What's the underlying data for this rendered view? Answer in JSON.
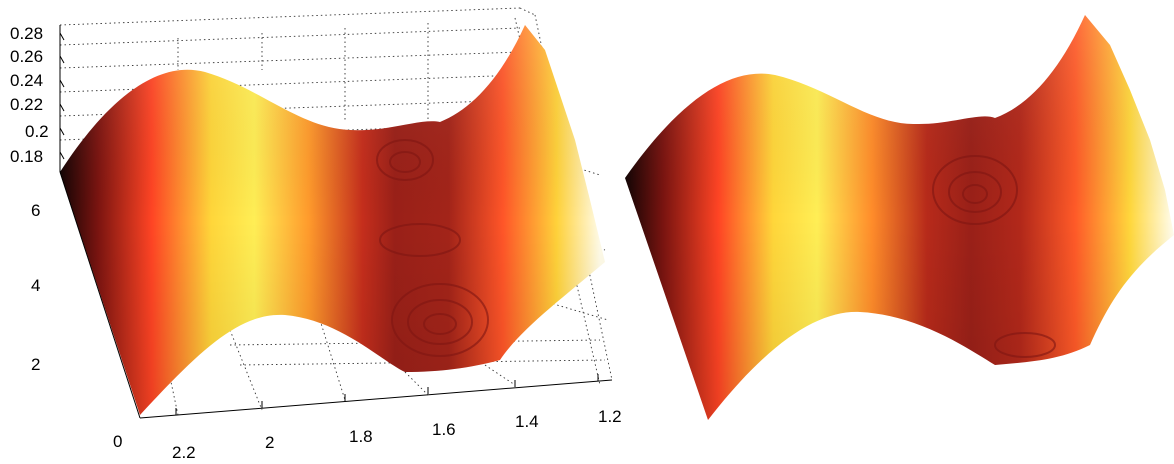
{
  "chart_data": [
    {
      "type": "surface",
      "title": "",
      "xlabel": "",
      "ylabel": "",
      "zlabel": "",
      "x_ticks": [
        "2.2",
        "2",
        "1.8",
        "1.6",
        "1.4",
        "1.2"
      ],
      "y_ticks": [
        "0",
        "2",
        "4",
        "6"
      ],
      "z_ticks": [
        "0.18",
        "0.2",
        "0.22",
        "0.24",
        "0.26",
        "0.28"
      ],
      "x_range": [
        1.15,
        2.3
      ],
      "y_range": [
        0,
        7
      ],
      "z_range": [
        0.18,
        0.28
      ],
      "colormap": "hot",
      "grid": true
    },
    {
      "type": "surface",
      "title": "",
      "colormap": "hot",
      "axes_visible": false
    }
  ]
}
